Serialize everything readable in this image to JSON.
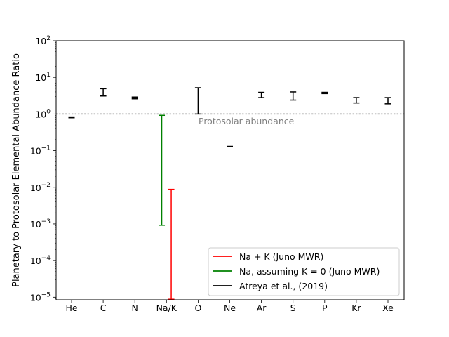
{
  "chart_data": {
    "type": "errorbar",
    "title": "",
    "xlabel": "",
    "ylabel": "Planetary to Protosolar Elemental Abundance Ratio",
    "yscale": "log",
    "ylim": [
      8.5e-06,
      100
    ],
    "yticks": [
      {
        "value": 1e-05,
        "mantissa": "10",
        "exp": "−5"
      },
      {
        "value": 0.0001,
        "mantissa": "10",
        "exp": "−4"
      },
      {
        "value": 0.001,
        "mantissa": "10",
        "exp": "−3"
      },
      {
        "value": 0.01,
        "mantissa": "10",
        "exp": "−2"
      },
      {
        "value": 0.1,
        "mantissa": "10",
        "exp": "−1"
      },
      {
        "value": 1,
        "mantissa": "10",
        "exp": "0"
      },
      {
        "value": 10,
        "mantissa": "10",
        "exp": "1"
      },
      {
        "value": 100,
        "mantissa": "10",
        "exp": "2"
      }
    ],
    "categories": [
      "He",
      "C",
      "N",
      "Na/K",
      "O",
      "Ne",
      "Ar",
      "S",
      "P",
      "Kr",
      "Xe"
    ],
    "reference_line": {
      "value": 1.0,
      "label": "Protosolar abundance",
      "color": "#808080"
    },
    "legend_position": "lower-right",
    "series": [
      {
        "name": "Na + K (Juno MWR)",
        "color": "#ff0000",
        "bars": [
          {
            "category": "Na/K",
            "offset": 0.15,
            "low": 8.8e-06,
            "high": 0.0088
          }
        ]
      },
      {
        "name": "Na, assuming K = 0 (Juno MWR)",
        "color": "#008000",
        "bars": [
          {
            "category": "Na/K",
            "offset": -0.15,
            "low": 0.00092,
            "high": 0.92
          }
        ]
      },
      {
        "name": "Atreya et al., (2019)",
        "color": "#000000",
        "bars": [
          {
            "category": "He",
            "offset": 0,
            "low": 0.79,
            "high": 0.83
          },
          {
            "category": "C",
            "offset": 0,
            "low": 3.1,
            "high": 4.9
          },
          {
            "category": "N",
            "offset": 0,
            "low": 2.6,
            "high": 2.9
          },
          {
            "category": "O",
            "offset": 0,
            "low": 1.0,
            "high": 5.2
          },
          {
            "category": "Ne",
            "offset": 0,
            "low": 0.13,
            "high": 0.13
          },
          {
            "category": "Ar",
            "offset": 0,
            "low": 2.8,
            "high": 3.9
          },
          {
            "category": "S",
            "offset": 0,
            "low": 2.4,
            "high": 4.0
          },
          {
            "category": "P",
            "offset": 0,
            "low": 3.6,
            "high": 3.9
          },
          {
            "category": "Kr",
            "offset": 0,
            "low": 2.0,
            "high": 2.8
          },
          {
            "category": "Xe",
            "offset": 0,
            "low": 1.9,
            "high": 2.8
          }
        ]
      }
    ]
  }
}
